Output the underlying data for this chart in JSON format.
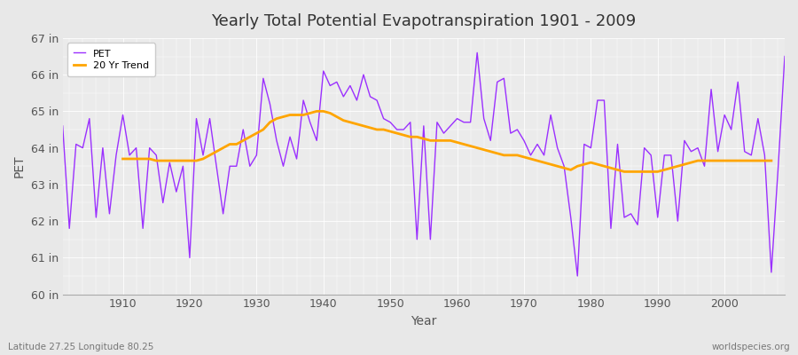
{
  "title": "Yearly Total Potential Evapotranspiration 1901 - 2009",
  "xlabel": "Year",
  "ylabel": "PET",
  "bottom_left_label": "Latitude 27.25 Longitude 80.25",
  "bottom_right_label": "worldspecies.org",
  "pet_color": "#9B30FF",
  "trend_color": "#FFA500",
  "bg_color": "#E8E8E8",
  "plot_bg_color": "#EBEBEB",
  "ylim": [
    60,
    67
  ],
  "yticks": [
    60,
    61,
    62,
    63,
    64,
    65,
    66,
    67
  ],
  "ytick_labels": [
    "60 in",
    "61 in",
    "62 in",
    "63 in",
    "64 in",
    "65 in",
    "66 in",
    "67 in"
  ],
  "xticks": [
    1910,
    1920,
    1930,
    1940,
    1950,
    1960,
    1970,
    1980,
    1990,
    2000
  ],
  "years": [
    1901,
    1902,
    1903,
    1904,
    1905,
    1906,
    1907,
    1908,
    1909,
    1910,
    1911,
    1912,
    1913,
    1914,
    1915,
    1916,
    1917,
    1918,
    1919,
    1920,
    1921,
    1922,
    1923,
    1924,
    1925,
    1926,
    1927,
    1928,
    1929,
    1930,
    1931,
    1932,
    1933,
    1934,
    1935,
    1936,
    1937,
    1938,
    1939,
    1940,
    1941,
    1942,
    1943,
    1944,
    1945,
    1946,
    1947,
    1948,
    1949,
    1950,
    1951,
    1952,
    1953,
    1954,
    1955,
    1956,
    1957,
    1958,
    1959,
    1960,
    1961,
    1962,
    1963,
    1964,
    1965,
    1966,
    1967,
    1968,
    1969,
    1970,
    1971,
    1972,
    1973,
    1974,
    1975,
    1976,
    1977,
    1978,
    1979,
    1980,
    1981,
    1982,
    1983,
    1984,
    1985,
    1986,
    1987,
    1988,
    1989,
    1990,
    1991,
    1992,
    1993,
    1994,
    1995,
    1996,
    1997,
    1998,
    1999,
    2000,
    2001,
    2002,
    2003,
    2004,
    2005,
    2006,
    2007,
    2008,
    2009
  ],
  "pet_values": [
    64.6,
    61.8,
    64.1,
    64.0,
    64.8,
    62.1,
    64.0,
    62.2,
    63.8,
    64.9,
    63.8,
    64.0,
    61.8,
    64.0,
    63.8,
    62.5,
    63.6,
    62.8,
    63.5,
    61.0,
    64.8,
    63.8,
    64.8,
    63.5,
    62.2,
    63.5,
    63.5,
    64.5,
    63.5,
    63.8,
    65.9,
    65.2,
    64.2,
    63.5,
    64.3,
    63.7,
    65.3,
    64.7,
    64.2,
    66.1,
    65.7,
    65.8,
    65.4,
    65.7,
    65.3,
    66.0,
    65.4,
    65.3,
    64.8,
    64.7,
    64.5,
    64.5,
    64.7,
    61.5,
    64.6,
    61.5,
    64.7,
    64.4,
    64.6,
    64.8,
    64.7,
    64.7,
    66.6,
    64.8,
    64.2,
    65.8,
    65.9,
    64.4,
    64.5,
    64.2,
    63.8,
    64.1,
    63.8,
    64.9,
    64.0,
    63.5,
    62.1,
    60.5,
    64.1,
    64.0,
    65.3,
    65.3,
    61.8,
    64.1,
    62.1,
    62.2,
    61.9,
    64.0,
    63.8,
    62.1,
    63.8,
    63.8,
    62.0,
    64.2,
    63.9,
    64.0,
    63.5,
    65.6,
    63.9,
    64.9,
    64.5,
    65.8,
    63.9,
    63.8,
    64.8,
    63.8,
    60.6,
    63.4,
    66.5
  ],
  "trend_values": [
    null,
    null,
    null,
    null,
    null,
    null,
    null,
    null,
    null,
    63.7,
    63.7,
    63.7,
    63.7,
    63.7,
    63.65,
    63.65,
    63.65,
    63.65,
    63.65,
    63.65,
    63.65,
    63.7,
    63.8,
    63.9,
    64.0,
    64.1,
    64.1,
    64.2,
    64.3,
    64.4,
    64.5,
    64.7,
    64.8,
    64.85,
    64.9,
    64.9,
    64.9,
    64.95,
    65.0,
    65.0,
    64.95,
    64.85,
    64.75,
    64.7,
    64.65,
    64.6,
    64.55,
    64.5,
    64.5,
    64.45,
    64.4,
    64.35,
    64.3,
    64.3,
    64.25,
    64.2,
    64.2,
    64.2,
    64.2,
    64.15,
    64.1,
    64.05,
    64.0,
    63.95,
    63.9,
    63.85,
    63.8,
    63.8,
    63.8,
    63.75,
    63.7,
    63.65,
    63.6,
    63.55,
    63.5,
    63.45,
    63.4,
    63.5,
    63.55,
    63.6,
    63.55,
    63.5,
    63.45,
    63.4,
    63.35,
    63.35,
    63.35,
    63.35,
    63.35,
    63.35,
    63.4,
    63.45,
    63.5,
    63.55,
    63.6,
    63.65,
    63.65,
    63.65,
    63.65,
    63.65,
    63.65,
    63.65,
    63.65,
    63.65,
    63.65,
    63.65,
    63.65,
    null
  ]
}
